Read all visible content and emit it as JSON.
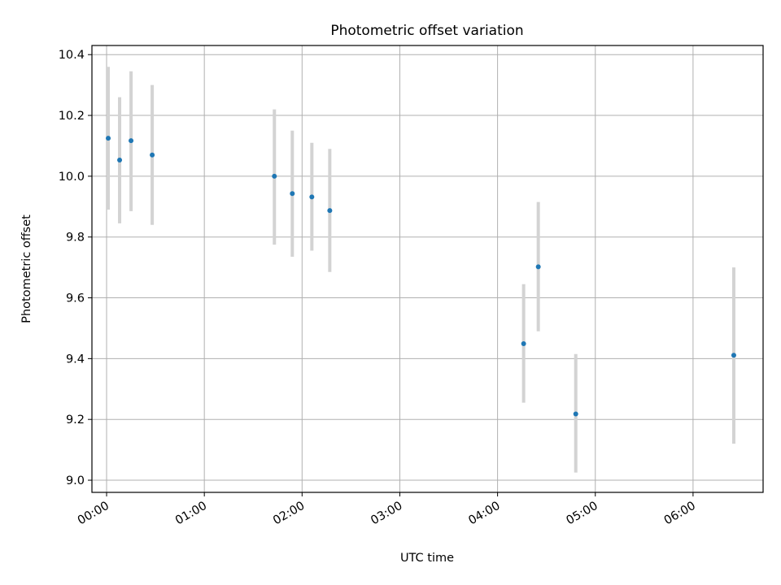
{
  "chart_data": {
    "type": "scatter",
    "title": "Photometric offset variation",
    "xlabel": "UTC time",
    "ylabel": "Photometric offset",
    "x_unit": "time (HH:MM UTC)",
    "xlim": [
      "-00:09",
      "06:43"
    ],
    "ylim": [
      8.96,
      10.43
    ],
    "x_ticks": [
      "00:00",
      "01:00",
      "02:00",
      "03:00",
      "04:00",
      "05:00",
      "06:00"
    ],
    "y_ticks": [
      9.0,
      9.2,
      9.4,
      9.6,
      9.8,
      10.0,
      10.2,
      10.4
    ],
    "y_tick_labels": [
      "9.0",
      "9.2",
      "9.4",
      "9.6",
      "9.8",
      "10.0",
      "10.2",
      "10.4"
    ],
    "grid": true,
    "points": [
      {
        "x": "00:01",
        "y": 10.125,
        "y_low": 9.89,
        "y_high": 10.36
      },
      {
        "x": "00:08",
        "y": 10.053,
        "y_low": 9.845,
        "y_high": 10.26
      },
      {
        "x": "00:15",
        "y": 10.117,
        "y_low": 9.885,
        "y_high": 10.345
      },
      {
        "x": "00:28",
        "y": 10.07,
        "y_low": 9.84,
        "y_high": 10.3
      },
      {
        "x": "01:43",
        "y": 10.0,
        "y_low": 9.775,
        "y_high": 10.22
      },
      {
        "x": "01:54",
        "y": 9.943,
        "y_low": 9.735,
        "y_high": 10.15
      },
      {
        "x": "02:06",
        "y": 9.932,
        "y_low": 9.755,
        "y_high": 10.11
      },
      {
        "x": "02:17",
        "y": 9.887,
        "y_low": 9.685,
        "y_high": 10.09
      },
      {
        "x": "04:16",
        "y": 9.449,
        "y_low": 9.255,
        "y_high": 9.645
      },
      {
        "x": "04:25",
        "y": 9.702,
        "y_low": 9.49,
        "y_high": 9.915
      },
      {
        "x": "04:48",
        "y": 9.218,
        "y_low": 9.025,
        "y_high": 9.415
      },
      {
        "x": "06:25",
        "y": 9.411,
        "y_low": 9.12,
        "y_high": 9.7
      }
    ],
    "marker_color": "#1f77b4",
    "errorbar_color": "#d3d3d3",
    "grid_color": "#b0b0b0"
  }
}
